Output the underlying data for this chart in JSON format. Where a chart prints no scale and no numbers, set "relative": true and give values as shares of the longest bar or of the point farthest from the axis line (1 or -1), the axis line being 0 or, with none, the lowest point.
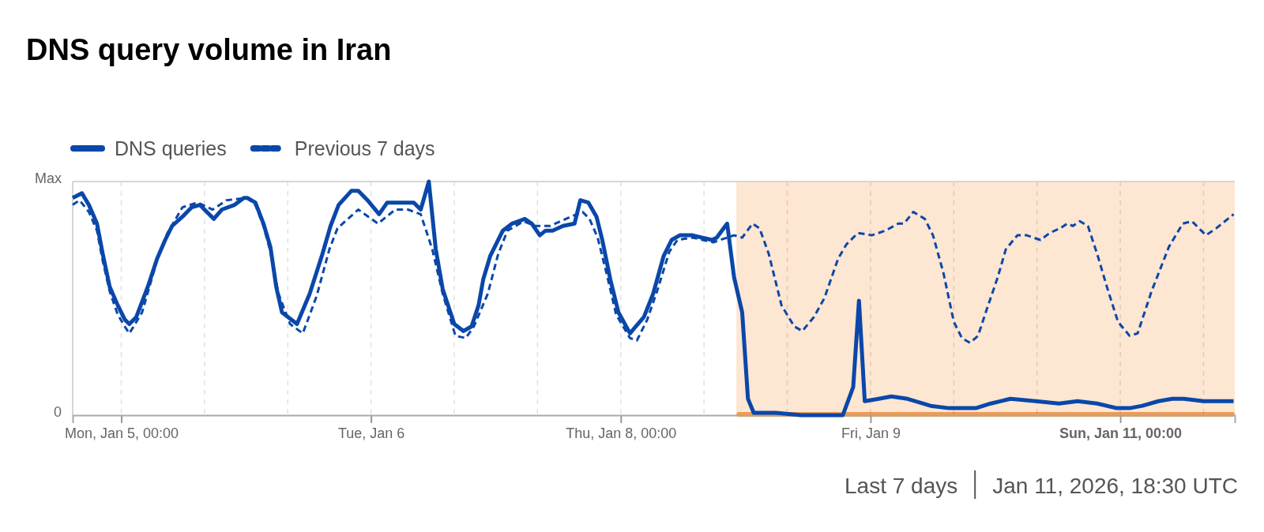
{
  "chart_data": {
    "type": "line",
    "title": "DNS query volume in Iran",
    "xlim": [
      "2026-01-04T17:00",
      "2026-01-11T16:30"
    ],
    "xticks": [
      {
        "value": "2026-01-05T00:00",
        "label": "Mon, Jan 5, 00:00"
      },
      {
        "value": "2026-01-05T12:00",
        "label": null
      },
      {
        "value": "2026-01-06T00:00",
        "label": null
      },
      {
        "value": "2026-01-06T12:00",
        "label": "Tue, Jan 6"
      },
      {
        "value": "2026-01-07T00:00",
        "label": null
      },
      {
        "value": "2026-01-07T12:00",
        "label": null
      },
      {
        "value": "2026-01-08T00:00",
        "label": "Thu, Jan 8, 00:00"
      },
      {
        "value": "2026-01-08T12:00",
        "label": null
      },
      {
        "value": "2026-01-09T00:00",
        "label": null
      },
      {
        "value": "2026-01-09T12:00",
        "label": "Fri, Jan 9"
      },
      {
        "value": "2026-01-10T00:00",
        "label": null
      },
      {
        "value": "2026-01-10T12:00",
        "label": null
      },
      {
        "value": "2026-01-11T00:00",
        "label": "Sun, Jan 11, 00:00"
      },
      {
        "value": "2026-01-11T12:00",
        "label": null
      }
    ],
    "relative": true,
    "grid": "x",
    "legend": "top left",
    "series": [
      {
        "name": "DNS queries",
        "color": "#0a47a9",
        "line_style": "solid",
        "x": [
          "2026-01-04T17:00",
          "2026-01-04T18:20",
          "2026-01-04T19:20",
          "2026-01-04T20:30",
          "2026-01-04T21:20",
          "2026-01-04T22:20",
          "2026-01-04T23:30",
          "2026-01-05T00:30",
          "2026-01-05T01:10",
          "2026-01-05T02:10",
          "2026-01-05T03:50",
          "2026-01-05T05:10",
          "2026-01-05T06:20",
          "2026-01-05T07:20",
          "2026-01-05T08:50",
          "2026-01-05T10:10",
          "2026-01-05T11:20",
          "2026-01-05T13:20",
          "2026-01-05T14:30",
          "2026-01-05T16:20",
          "2026-01-05T17:40",
          "2026-01-05T18:10",
          "2026-01-05T19:20",
          "2026-01-05T20:30",
          "2026-01-05T21:30",
          "2026-01-05T22:20",
          "2026-01-05T23:10",
          "2026-01-06T01:20",
          "2026-01-06T03:10",
          "2026-01-06T05:00",
          "2026-01-06T06:10",
          "2026-01-06T07:20",
          "2026-01-06T09:10",
          "2026-01-06T10:10",
          "2026-01-06T11:30",
          "2026-01-06T13:10",
          "2026-01-06T14:20",
          "2026-01-06T16:20",
          "2026-01-06T18:10",
          "2026-01-06T19:10",
          "2026-01-06T20:20",
          "2026-01-06T21:20",
          "2026-01-06T22:20",
          "2026-01-07T00:00",
          "2026-01-07T01:20",
          "2026-01-07T02:30",
          "2026-01-07T03:30",
          "2026-01-07T04:10",
          "2026-01-07T05:10",
          "2026-01-07T07:00",
          "2026-01-07T08:20",
          "2026-01-07T10:10",
          "2026-01-07T11:10",
          "2026-01-07T12:20",
          "2026-01-07T13:10",
          "2026-01-07T14:10",
          "2026-01-07T15:40",
          "2026-01-07T17:20",
          "2026-01-07T18:10",
          "2026-01-07T19:20",
          "2026-01-07T20:30",
          "2026-01-07T21:20",
          "2026-01-07T22:30",
          "2026-01-07T23:40",
          "2026-01-08T01:20",
          "2026-01-08T02:10",
          "2026-01-08T03:20",
          "2026-01-08T04:40",
          "2026-01-08T06:10",
          "2026-01-08T07:20",
          "2026-01-08T08:30",
          "2026-01-08T10:20",
          "2026-01-08T11:40",
          "2026-01-08T13:10",
          "2026-01-08T13:50",
          "2026-01-08T15:20",
          "2026-01-08T16:20",
          "2026-01-08T17:30",
          "2026-01-08T18:20",
          "2026-01-08T19:10",
          "2026-01-08T22:20",
          "2026-01-09T02:00",
          "2026-01-09T08:00",
          "2026-01-09T09:30",
          "2026-01-09T10:20",
          "2026-01-09T11:10",
          "2026-01-09T13:10",
          "2026-01-09T15:00",
          "2026-01-09T17:20",
          "2026-01-09T20:40",
          "2026-01-09T23:20",
          "2026-01-10T03:10",
          "2026-01-10T05:20",
          "2026-01-10T08:10",
          "2026-01-10T11:50",
          "2026-01-10T15:10",
          "2026-01-10T17:50",
          "2026-01-10T20:40",
          "2026-01-10T23:30",
          "2026-01-11T01:20",
          "2026-01-11T03:10",
          "2026-01-11T05:30",
          "2026-01-11T07:30",
          "2026-01-11T09:10",
          "2026-01-11T12:00",
          "2026-01-11T13:50",
          "2026-01-11T16:20"
        ],
        "values": [
          0.93,
          0.95,
          0.9,
          0.82,
          0.69,
          0.55,
          0.47,
          0.41,
          0.39,
          0.42,
          0.55,
          0.67,
          0.75,
          0.81,
          0.85,
          0.89,
          0.9,
          0.84,
          0.88,
          0.9,
          0.93,
          0.93,
          0.91,
          0.82,
          0.72,
          0.55,
          0.44,
          0.39,
          0.52,
          0.69,
          0.81,
          0.9,
          0.96,
          0.96,
          0.92,
          0.86,
          0.91,
          0.91,
          0.91,
          0.88,
          1.0,
          0.71,
          0.54,
          0.39,
          0.36,
          0.38,
          0.47,
          0.58,
          0.68,
          0.79,
          0.82,
          0.84,
          0.82,
          0.77,
          0.79,
          0.79,
          0.81,
          0.82,
          0.92,
          0.91,
          0.85,
          0.75,
          0.58,
          0.44,
          0.35,
          0.38,
          0.42,
          0.52,
          0.68,
          0.75,
          0.77,
          0.77,
          0.76,
          0.75,
          0.76,
          0.82,
          0.59,
          0.44,
          0.07,
          0.01,
          0.01,
          0.0,
          0.0,
          0.12,
          0.49,
          0.06,
          0.07,
          0.08,
          0.07,
          0.04,
          0.03,
          0.03,
          0.05,
          0.07,
          0.06,
          0.05,
          0.06,
          0.05,
          0.03,
          0.03,
          0.04,
          0.06,
          0.07,
          0.07,
          0.06,
          0.06,
          0.06
        ]
      },
      {
        "name": "Previous 7 days",
        "color": "#0a47a9",
        "line_style": "dashed",
        "x": [
          "2026-01-04T17:00",
          "2026-01-04T18:00",
          "2026-01-04T19:20",
          "2026-01-04T20:30",
          "2026-01-04T21:20",
          "2026-01-04T22:20",
          "2026-01-04T23:30",
          "2026-01-05T00:30",
          "2026-01-05T01:10",
          "2026-01-05T03:00",
          "2026-01-05T04:10",
          "2026-01-05T05:20",
          "2026-01-05T06:40",
          "2026-01-05T08:50",
          "2026-01-05T11:00",
          "2026-01-05T13:10",
          "2026-01-05T15:10",
          "2026-01-05T18:10",
          "2026-01-05T19:20",
          "2026-01-05T20:30",
          "2026-01-05T21:30",
          "2026-01-05T22:40",
          "2026-01-06T00:20",
          "2026-01-06T02:10",
          "2026-01-06T04:10",
          "2026-01-06T06:00",
          "2026-01-06T07:10",
          "2026-01-06T10:10",
          "2026-01-06T13:00",
          "2026-01-06T15:30",
          "2026-01-06T17:20",
          "2026-01-06T19:10",
          "2026-01-06T20:50",
          "2026-01-06T22:20",
          "2026-01-07T00:10",
          "2026-01-07T01:40",
          "2026-01-07T02:50",
          "2026-01-07T04:50",
          "2026-01-07T06:20",
          "2026-01-07T07:40",
          "2026-01-07T10:00",
          "2026-01-07T11:40",
          "2026-01-07T13:50",
          "2026-01-07T16:50",
          "2026-01-07T18:30",
          "2026-01-07T19:30",
          "2026-01-07T20:40",
          "2026-01-07T22:10",
          "2026-01-07T23:20",
          "2026-01-08T01:20",
          "2026-01-08T02:20",
          "2026-01-08T03:50",
          "2026-01-08T05:20",
          "2026-01-08T07:00",
          "2026-01-08T08:10",
          "2026-01-08T10:20",
          "2026-01-08T13:20",
          "2026-01-08T16:20",
          "2026-01-08T17:30",
          "2026-01-08T19:00",
          "2026-01-08T20:00",
          "2026-01-08T21:20",
          "2026-01-08T23:10",
          "2026-01-09T01:00",
          "2026-01-09T02:10",
          "2026-01-09T03:50",
          "2026-01-09T05:20",
          "2026-01-09T07:20",
          "2026-01-09T08:30",
          "2026-01-09T10:10",
          "2026-01-09T12:10",
          "2026-01-09T14:10",
          "2026-01-09T16:00",
          "2026-01-09T16:50",
          "2026-01-09T18:10",
          "2026-01-09T19:50",
          "2026-01-09T21:00",
          "2026-01-09T22:30",
          "2026-01-10T00:00",
          "2026-01-10T01:10",
          "2026-01-10T02:20",
          "2026-01-10T03:30",
          "2026-01-10T04:50",
          "2026-01-10T06:20",
          "2026-01-10T07:30",
          "2026-01-10T09:10",
          "2026-01-10T10:30",
          "2026-01-10T12:30",
          "2026-01-10T13:50",
          "2026-01-10T15:20",
          "2026-01-10T16:20",
          "2026-01-10T17:10",
          "2026-01-10T18:10",
          "2026-01-10T19:20",
          "2026-01-10T20:40",
          "2026-01-10T22:10",
          "2026-01-10T23:40",
          "2026-01-11T01:20",
          "2026-01-11T02:30",
          "2026-01-11T04:30",
          "2026-01-11T07:00",
          "2026-01-11T09:00",
          "2026-01-11T10:20",
          "2026-01-11T12:20",
          "2026-01-11T13:50",
          "2026-01-11T16:20"
        ],
        "values": [
          0.9,
          0.92,
          0.87,
          0.79,
          0.66,
          0.53,
          0.43,
          0.38,
          0.35,
          0.44,
          0.56,
          0.68,
          0.78,
          0.89,
          0.91,
          0.88,
          0.92,
          0.93,
          0.9,
          0.81,
          0.7,
          0.52,
          0.39,
          0.35,
          0.51,
          0.71,
          0.8,
          0.88,
          0.82,
          0.88,
          0.88,
          0.86,
          0.71,
          0.52,
          0.34,
          0.33,
          0.38,
          0.52,
          0.69,
          0.79,
          0.83,
          0.81,
          0.81,
          0.85,
          0.87,
          0.84,
          0.76,
          0.58,
          0.43,
          0.33,
          0.32,
          0.41,
          0.54,
          0.7,
          0.75,
          0.76,
          0.74,
          0.77,
          0.76,
          0.82,
          0.8,
          0.69,
          0.47,
          0.38,
          0.36,
          0.42,
          0.5,
          0.67,
          0.73,
          0.78,
          0.77,
          0.79,
          0.82,
          0.82,
          0.87,
          0.84,
          0.77,
          0.61,
          0.4,
          0.33,
          0.31,
          0.34,
          0.46,
          0.59,
          0.71,
          0.77,
          0.77,
          0.75,
          0.78,
          0.8,
          0.82,
          0.81,
          0.83,
          0.81,
          0.69,
          0.54,
          0.4,
          0.34,
          0.35,
          0.53,
          0.72,
          0.82,
          0.83,
          0.77,
          0.8,
          0.86
        ]
      }
    ],
    "bands": [
      {
        "axis": "x",
        "from": "2026-01-08T16:40",
        "to": "2026-01-11T16:30",
        "color": "#fde6d2"
      }
    ],
    "annotations": [
      "Max",
      "0",
      "Last 7 days",
      "Jan 11, 2026, 18:30 UTC"
    ]
  }
}
